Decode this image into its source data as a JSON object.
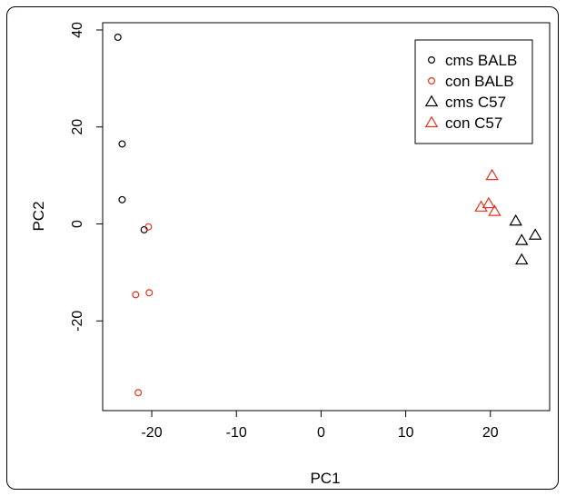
{
  "chart_data": {
    "type": "scatter",
    "xlabel": "PC1",
    "ylabel": "PC2",
    "xlim": [
      -25.8,
      27
    ],
    "ylim": [
      -38.5,
      41.5
    ],
    "xticks": [
      -20,
      -10,
      0,
      10,
      20
    ],
    "yticks": [
      -20,
      0,
      20,
      40
    ],
    "grid": false,
    "legend_position": "top-right",
    "series": [
      {
        "name": "cms BALB",
        "marker": "circle",
        "color": "#000000",
        "points": [
          [
            -24,
            38.5
          ],
          [
            -23.5,
            16.5
          ],
          [
            -23.5,
            5
          ],
          [
            -20.9,
            -1.2
          ]
        ]
      },
      {
        "name": "con BALB",
        "marker": "circle",
        "color": "#e8301c",
        "points": [
          [
            -20.4,
            -0.6
          ],
          [
            -21.9,
            -14.6
          ],
          [
            -20.3,
            -14.2
          ],
          [
            -21.6,
            -34.8
          ]
        ]
      },
      {
        "name": "cms C57",
        "marker": "triangle",
        "color": "#000000",
        "points": [
          [
            23,
            0.6
          ],
          [
            25.3,
            -2.3
          ],
          [
            23.7,
            -3.4
          ],
          [
            23.7,
            -7.4
          ]
        ]
      },
      {
        "name": "con C57",
        "marker": "triangle",
        "color": "#e8301c",
        "points": [
          [
            20.2,
            10
          ],
          [
            19.8,
            4.2
          ],
          [
            18.9,
            3.5
          ],
          [
            20.5,
            2.6
          ]
        ]
      }
    ]
  }
}
